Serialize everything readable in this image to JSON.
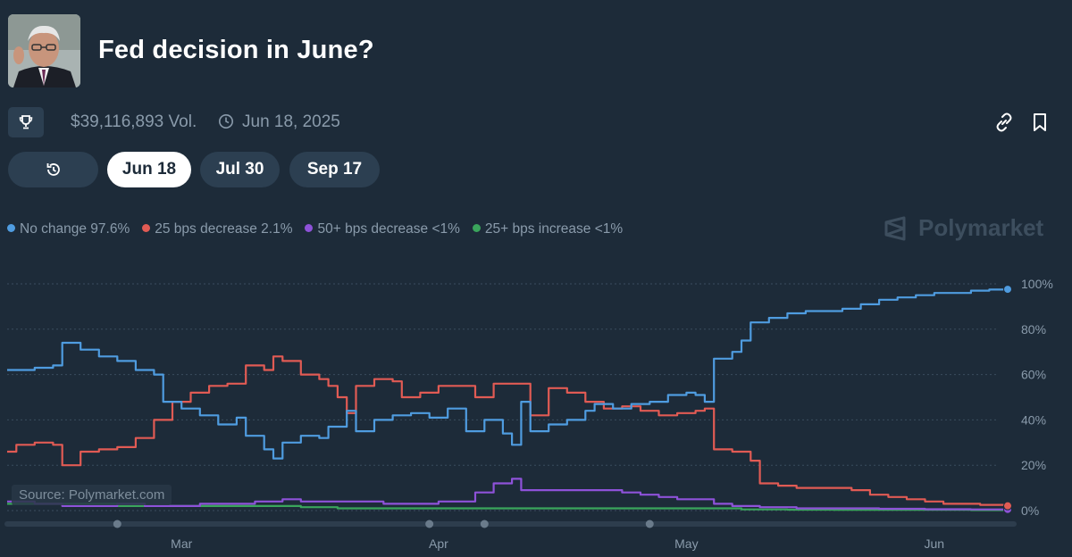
{
  "header": {
    "title": "Fed decision in June?",
    "volume": "$39,116,893 Vol.",
    "end_date": "Jun 18, 2025"
  },
  "tabs": [
    {
      "label": "",
      "icon": "history-icon"
    },
    {
      "label": "Jun 18",
      "active": true
    },
    {
      "label": "Jul 30"
    },
    {
      "label": "Sep 17"
    }
  ],
  "legend": [
    {
      "label": "No change 97.6%",
      "color": "#4f9ce0"
    },
    {
      "label": "25 bps decrease 2.1%",
      "color": "#e15b54"
    },
    {
      "label": "50+ bps decrease <1%",
      "color": "#8e52d9"
    },
    {
      "label": "25+ bps increase <1%",
      "color": "#3aa55c"
    }
  ],
  "brand": "Polymarket",
  "source": "Source: Polymarket.com",
  "chart_data": {
    "type": "line",
    "y_range": [
      0,
      100
    ],
    "y_tick_labels": [
      "100%",
      "80%",
      "60%",
      "40%",
      "20%",
      "0%"
    ],
    "y_ticks": [
      100,
      80,
      60,
      40,
      20,
      0
    ],
    "x_range": [
      0,
      109
    ],
    "x_tick_labels": [
      "Mar",
      "Apr",
      "May",
      "Jun"
    ],
    "x_ticks": [
      19,
      47,
      74,
      101
    ],
    "series": [
      {
        "name": "No change",
        "color": "#4f9ce0",
        "points": [
          [
            0,
            62
          ],
          [
            3,
            63
          ],
          [
            5,
            64
          ],
          [
            6,
            74
          ],
          [
            8,
            71
          ],
          [
            10,
            68
          ],
          [
            12,
            66
          ],
          [
            14,
            62
          ],
          [
            16,
            60
          ],
          [
            17,
            48
          ],
          [
            19,
            45
          ],
          [
            21,
            42
          ],
          [
            23,
            38
          ],
          [
            25,
            41
          ],
          [
            26,
            33
          ],
          [
            28,
            27
          ],
          [
            29,
            23
          ],
          [
            30,
            30
          ],
          [
            32,
            33
          ],
          [
            34,
            32
          ],
          [
            35,
            37
          ],
          [
            37,
            44
          ],
          [
            38,
            35
          ],
          [
            40,
            40
          ],
          [
            42,
            42
          ],
          [
            44,
            43
          ],
          [
            46,
            41
          ],
          [
            48,
            45
          ],
          [
            50,
            35
          ],
          [
            52,
            40
          ],
          [
            54,
            34
          ],
          [
            55,
            29
          ],
          [
            56,
            48
          ],
          [
            57,
            35
          ],
          [
            59,
            38
          ],
          [
            61,
            40
          ],
          [
            63,
            44
          ],
          [
            64,
            47
          ],
          [
            66,
            45
          ],
          [
            68,
            47
          ],
          [
            70,
            48
          ],
          [
            72,
            51
          ],
          [
            74,
            52
          ],
          [
            75,
            51
          ],
          [
            76,
            48
          ],
          [
            77,
            67
          ],
          [
            79,
            70
          ],
          [
            80,
            75
          ],
          [
            81,
            83
          ],
          [
            83,
            85
          ],
          [
            85,
            87
          ],
          [
            87,
            88
          ],
          [
            89,
            88
          ],
          [
            91,
            89
          ],
          [
            93,
            91
          ],
          [
            95,
            93
          ],
          [
            97,
            94
          ],
          [
            99,
            95
          ],
          [
            101,
            96
          ],
          [
            103,
            96
          ],
          [
            105,
            97
          ],
          [
            107,
            97.5
          ],
          [
            109,
            97.6
          ]
        ]
      },
      {
        "name": "25 bps decrease",
        "color": "#e15b54",
        "points": [
          [
            0,
            26
          ],
          [
            1,
            29
          ],
          [
            3,
            30
          ],
          [
            5,
            29
          ],
          [
            6,
            20
          ],
          [
            8,
            26
          ],
          [
            10,
            27
          ],
          [
            12,
            28
          ],
          [
            14,
            32
          ],
          [
            16,
            40
          ],
          [
            18,
            48
          ],
          [
            20,
            52
          ],
          [
            22,
            55
          ],
          [
            24,
            56
          ],
          [
            26,
            64
          ],
          [
            28,
            62
          ],
          [
            29,
            68
          ],
          [
            30,
            66
          ],
          [
            32,
            60
          ],
          [
            34,
            58
          ],
          [
            35,
            55
          ],
          [
            36,
            50
          ],
          [
            37,
            43
          ],
          [
            38,
            55
          ],
          [
            40,
            58
          ],
          [
            42,
            57
          ],
          [
            43,
            50
          ],
          [
            45,
            52
          ],
          [
            47,
            55
          ],
          [
            49,
            55
          ],
          [
            51,
            50
          ],
          [
            53,
            56
          ],
          [
            55,
            56
          ],
          [
            57,
            42
          ],
          [
            59,
            54
          ],
          [
            61,
            52
          ],
          [
            63,
            48
          ],
          [
            65,
            45
          ],
          [
            67,
            46
          ],
          [
            69,
            44
          ],
          [
            71,
            42
          ],
          [
            73,
            43
          ],
          [
            75,
            44
          ],
          [
            76,
            45
          ],
          [
            77,
            27
          ],
          [
            79,
            26
          ],
          [
            81,
            22
          ],
          [
            82,
            12
          ],
          [
            84,
            11
          ],
          [
            86,
            10
          ],
          [
            88,
            10
          ],
          [
            90,
            10
          ],
          [
            92,
            9
          ],
          [
            94,
            7
          ],
          [
            96,
            6
          ],
          [
            98,
            5
          ],
          [
            100,
            4
          ],
          [
            102,
            3
          ],
          [
            104,
            3
          ],
          [
            106,
            2.5
          ],
          [
            109,
            2.1
          ]
        ]
      },
      {
        "name": "50+ bps decrease",
        "color": "#8e52d9",
        "points": [
          [
            0,
            4
          ],
          [
            3,
            3
          ],
          [
            6,
            2
          ],
          [
            9,
            2
          ],
          [
            12,
            3
          ],
          [
            15,
            2
          ],
          [
            18,
            2
          ],
          [
            21,
            3
          ],
          [
            24,
            3
          ],
          [
            27,
            4
          ],
          [
            30,
            5
          ],
          [
            32,
            4
          ],
          [
            35,
            4
          ],
          [
            38,
            4
          ],
          [
            41,
            3
          ],
          [
            44,
            3
          ],
          [
            47,
            4
          ],
          [
            50,
            4
          ],
          [
            51,
            8
          ],
          [
            53,
            12
          ],
          [
            55,
            14
          ],
          [
            56,
            9
          ],
          [
            58,
            9
          ],
          [
            60,
            9
          ],
          [
            63,
            9
          ],
          [
            65,
            9
          ],
          [
            67,
            8
          ],
          [
            69,
            7
          ],
          [
            71,
            6
          ],
          [
            73,
            5
          ],
          [
            75,
            5
          ],
          [
            77,
            3
          ],
          [
            79,
            2
          ],
          [
            82,
            1.5
          ],
          [
            86,
            1
          ],
          [
            90,
            1
          ],
          [
            95,
            0.8
          ],
          [
            100,
            0.6
          ],
          [
            105,
            0.5
          ],
          [
            109,
            0.5
          ]
        ]
      },
      {
        "name": "25+ bps increase",
        "color": "#3aa55c",
        "points": [
          [
            0,
            3
          ],
          [
            4,
            3
          ],
          [
            8,
            3
          ],
          [
            12,
            2
          ],
          [
            16,
            2
          ],
          [
            20,
            2
          ],
          [
            24,
            2
          ],
          [
            28,
            2
          ],
          [
            32,
            1.5
          ],
          [
            36,
            1
          ],
          [
            40,
            1
          ],
          [
            44,
            1
          ],
          [
            48,
            1
          ],
          [
            52,
            1
          ],
          [
            56,
            1
          ],
          [
            60,
            1
          ],
          [
            64,
            1
          ],
          [
            68,
            1
          ],
          [
            72,
            1
          ],
          [
            76,
            1
          ],
          [
            80,
            0.5
          ],
          [
            85,
            0.4
          ],
          [
            90,
            0.3
          ],
          [
            95,
            0.3
          ],
          [
            100,
            0.3
          ],
          [
            105,
            0.2
          ],
          [
            109,
            0.2
          ]
        ]
      }
    ]
  }
}
